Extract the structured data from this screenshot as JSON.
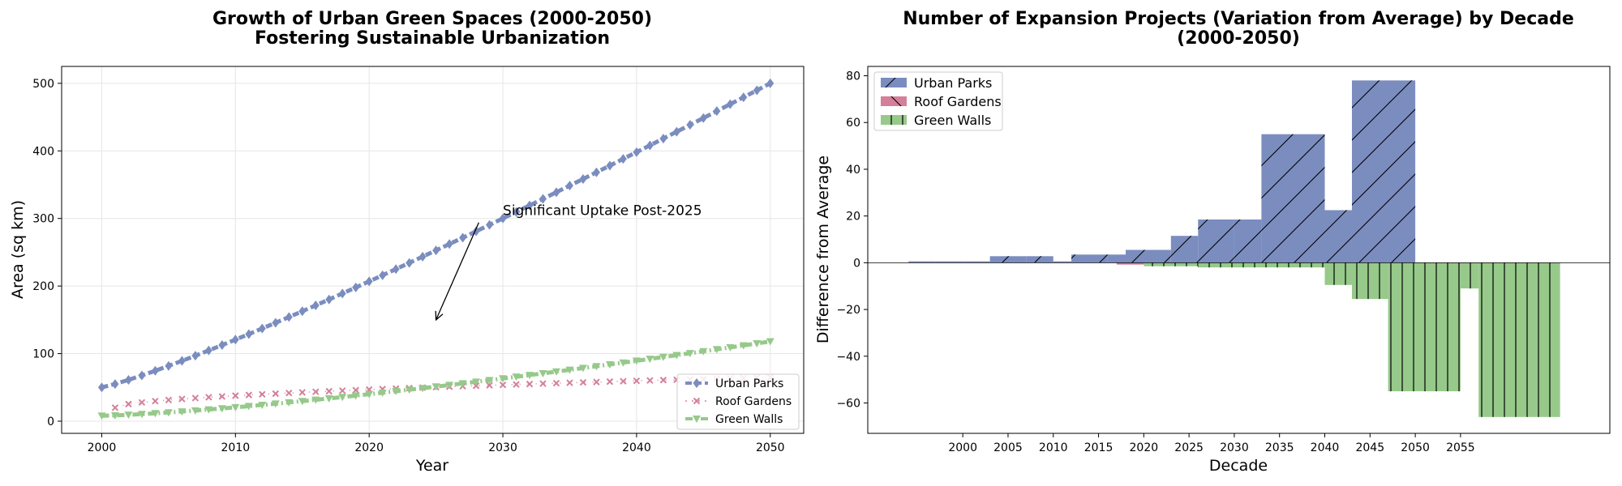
{
  "colors": {
    "urban_parks": "#7b8dbf",
    "urban_parks_dark": "#6f80b3",
    "roof_gardens": "#d4809a",
    "green_walls": "#96c98a"
  },
  "chart_data": [
    {
      "type": "line",
      "title_line1": "Growth of Urban Green Spaces (2000-2050)",
      "title_line2": "Fostering Sustainable Urbanization",
      "xlabel": "Year",
      "ylabel": "Area (sq km)",
      "xlim": [
        1997,
        2052.5
      ],
      "ylim": [
        -18,
        525
      ],
      "xticks": [
        2000,
        2010,
        2020,
        2030,
        2040,
        2050
      ],
      "yticks": [
        0,
        100,
        200,
        300,
        400,
        500
      ],
      "grid": true,
      "legend_position": "lower-right",
      "annotation": {
        "text": "Significant Uptake Post-2025",
        "text_at": [
          2030,
          305
        ],
        "arrow_from": [
          2028.2,
          294
        ],
        "arrow_to": [
          2025,
          150
        ]
      },
      "series": [
        {
          "name": "Urban Parks",
          "marker": "diamond",
          "color_key": "urban_parks",
          "start": 2000,
          "end": 2050,
          "v0": 50,
          "v1": 500,
          "power": 1.15
        },
        {
          "name": "Roof Gardens",
          "marker": "x",
          "color_key": "roof_gardens",
          "start": 2001,
          "end": 2050,
          "v0": 20,
          "v1": 65,
          "power": 0.55
        },
        {
          "name": "Green Walls",
          "marker": "triangle-down",
          "color_key": "green_walls",
          "start": 2000,
          "end": 2050,
          "v0": 8,
          "v1": 118,
          "power": 1.35
        }
      ]
    },
    {
      "type": "bar",
      "title_line1": "Number of Expansion Projects (Variation from Average) by Decade",
      "title_line2": "(2000-2050)",
      "xlabel": "Decade",
      "ylabel": "Difference from Average",
      "xlim": [
        1989.5,
        2071.5
      ],
      "ylim": [
        -73,
        84
      ],
      "xticks": [
        2000,
        2005,
        2010,
        2015,
        2020,
        2025,
        2030,
        2035,
        2040,
        2045,
        2050,
        2055
      ],
      "yticks": [
        -60,
        -40,
        -20,
        0,
        20,
        40,
        60,
        80
      ],
      "legend_position": "upper-left",
      "series": [
        {
          "name": "Urban Parks",
          "color_key": "urban_parks",
          "hatch": "diagonal",
          "bars": [
            [
              1994,
              1997,
              0.6
            ],
            [
              1997,
              2000,
              0.6
            ],
            [
              2000,
              2003,
              0.6
            ],
            [
              2003,
              2007,
              2.8
            ],
            [
              2007,
              2010,
              2.8
            ],
            [
              2010,
              2012,
              0.6
            ],
            [
              2012,
              2016,
              3.5
            ],
            [
              2016,
              2018,
              3.5
            ],
            [
              2018,
              2021,
              5.5
            ],
            [
              2021,
              2023,
              5.5
            ],
            [
              2023,
              2026,
              11.5
            ],
            [
              2026,
              2030,
              18.5
            ],
            [
              2030,
              2033,
              18.5
            ],
            [
              2033,
              2040,
              55
            ],
            [
              2040,
              2043,
              22.5
            ],
            [
              2043,
              2050,
              78
            ]
          ]
        },
        {
          "name": "Roof Gardens",
          "color_key": "roof_gardens",
          "hatch": "back-diagonal",
          "bars": [
            [
              2017,
              2020,
              -0.8
            ],
            [
              2026,
              2032,
              -1.8
            ]
          ]
        },
        {
          "name": "Green Walls",
          "color_key": "green_walls",
          "hatch": "vertical",
          "bars": [
            [
              2020,
              2026,
              -1.5
            ],
            [
              2026,
              2040,
              -2.0
            ],
            [
              2040,
              2043,
              -9.5
            ],
            [
              2043,
              2047,
              -15.5
            ],
            [
              2047,
              2055,
              -55
            ],
            [
              2055,
              2057,
              -11
            ],
            [
              2057,
              2066,
              -66
            ]
          ]
        }
      ]
    }
  ]
}
